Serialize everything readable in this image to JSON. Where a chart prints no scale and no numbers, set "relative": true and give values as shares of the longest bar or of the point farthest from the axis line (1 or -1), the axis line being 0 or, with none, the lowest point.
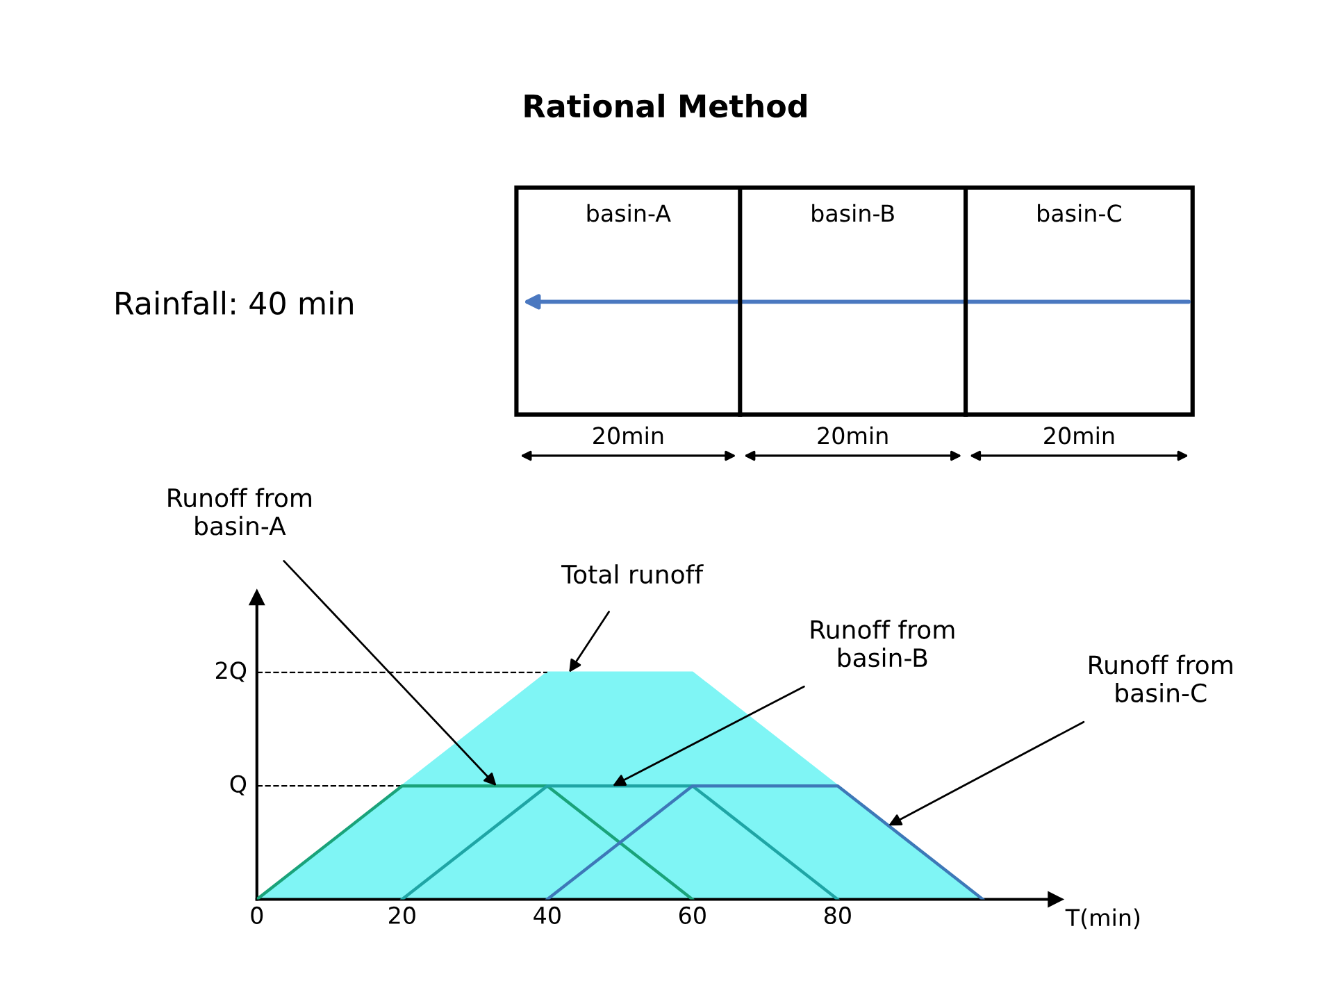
{
  "chart_data": {
    "type": "area",
    "title": "Rational Method",
    "xlabel": "T(min)",
    "x": [
      0,
      20,
      40,
      60,
      80,
      100
    ],
    "series": [
      {
        "color": "#7ff5f5",
        "values": [
          0,
          0.5,
          1,
          1,
          0.5,
          0
        ]
      },
      {
        "type": "line",
        "color": "#1aa37a",
        "x": [
          0,
          20,
          40,
          60
        ],
        "values": [
          0,
          0.5,
          0.5,
          0
        ]
      },
      {
        "type": "line",
        "color": "#1fa5a5",
        "x": [
          20,
          40,
          60,
          80
        ],
        "values": [
          0,
          0.5,
          0.5,
          0
        ]
      },
      {
        "type": "line",
        "color": "#3d78b8",
        "x": [
          40,
          60,
          80,
          100
        ],
        "values": [
          0,
          0.5,
          0.5,
          0
        ]
      }
    ],
    "relative": true,
    "xlim": [
      0,
      110
    ],
    "xticks": [
      0,
      20,
      40,
      60,
      80
    ],
    "ref_lines": [
      {
        "axis": "y",
        "value": 0.5,
        "label": "Q",
        "color": "#000000",
        "line_style": "dashed"
      },
      {
        "axis": "y",
        "value": 1,
        "label": "2Q",
        "color": "#000000",
        "line_style": "dashed"
      }
    ],
    "grid": false,
    "marker": "none",
    "annotations": [
      "Rainfall: 40 min",
      "basin-A",
      "basin-B",
      "basin-C",
      "20min",
      "20min",
      "20min",
      {
        "text": "Runoff from\nbasin-A",
        "x": 33,
        "y": 0.5
      },
      {
        "text": "Total runoff",
        "x": 43,
        "y": 1
      },
      {
        "text": "Runoff from\nbasin-B",
        "x": 49,
        "y": 0.5
      },
      {
        "text": "Runoff from\nbasin-C",
        "x": 87,
        "y": 0.325
      }
    ]
  }
}
